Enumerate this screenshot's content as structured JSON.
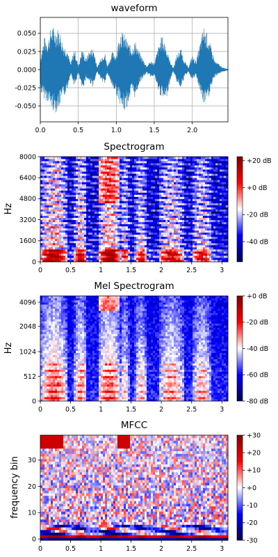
{
  "chart_data": [
    {
      "type": "line",
      "title": "waveform",
      "xlabel": "",
      "ylabel": "",
      "xlim": [
        0,
        2.47
      ],
      "ylim": [
        -0.072,
        0.072
      ],
      "xticks": [
        "0.0",
        "0.5",
        "1.0",
        "1.5",
        "2.0"
      ],
      "xtick_values": [
        0,
        0.5,
        1.0,
        1.5,
        2.0
      ],
      "yticks": [
        "0.050",
        "0.025",
        "0.000",
        "-0.025",
        "-0.050"
      ],
      "ytick_values": [
        0.05,
        0.025,
        0,
        -0.025,
        -0.05
      ],
      "grid": true,
      "color": "#1f77b4",
      "envelope": [
        {
          "x": 0.0,
          "max": 0.015,
          "min": -0.03
        },
        {
          "x": 0.05,
          "max": 0.045,
          "min": -0.04
        },
        {
          "x": 0.1,
          "max": 0.04,
          "min": -0.045
        },
        {
          "x": 0.15,
          "max": 0.062,
          "min": -0.055
        },
        {
          "x": 0.2,
          "max": 0.055,
          "min": -0.06
        },
        {
          "x": 0.25,
          "max": 0.058,
          "min": -0.052
        },
        {
          "x": 0.3,
          "max": 0.035,
          "min": -0.04
        },
        {
          "x": 0.35,
          "max": 0.03,
          "min": -0.03
        },
        {
          "x": 0.4,
          "max": 0.008,
          "min": -0.005
        },
        {
          "x": 0.45,
          "max": 0.03,
          "min": -0.025
        },
        {
          "x": 0.5,
          "max": 0.005,
          "min": -0.005
        },
        {
          "x": 0.55,
          "max": 0.03,
          "min": -0.03
        },
        {
          "x": 0.6,
          "max": 0.015,
          "min": -0.012
        },
        {
          "x": 0.65,
          "max": 0.028,
          "min": -0.018
        },
        {
          "x": 0.7,
          "max": 0.03,
          "min": -0.025
        },
        {
          "x": 0.75,
          "max": 0.003,
          "min": -0.003
        },
        {
          "x": 0.8,
          "max": 0.018,
          "min": -0.015
        },
        {
          "x": 0.85,
          "max": 0.025,
          "min": -0.02
        },
        {
          "x": 0.88,
          "max": 0.005,
          "min": -0.005
        },
        {
          "x": 0.95,
          "max": 0.025,
          "min": -0.025
        },
        {
          "x": 1.0,
          "max": 0.02,
          "min": -0.035
        },
        {
          "x": 1.05,
          "max": 0.055,
          "min": -0.048
        },
        {
          "x": 1.1,
          "max": 0.05,
          "min": -0.06
        },
        {
          "x": 1.15,
          "max": 0.04,
          "min": -0.05
        },
        {
          "x": 1.2,
          "max": 0.03,
          "min": -0.03
        },
        {
          "x": 1.25,
          "max": 0.04,
          "min": -0.04
        },
        {
          "x": 1.3,
          "max": 0.025,
          "min": -0.02
        },
        {
          "x": 1.35,
          "max": 0.015,
          "min": -0.012
        },
        {
          "x": 1.4,
          "max": 0.005,
          "min": -0.005
        },
        {
          "x": 1.45,
          "max": 0.012,
          "min": -0.01
        },
        {
          "x": 1.5,
          "max": 0.01,
          "min": -0.008
        },
        {
          "x": 1.55,
          "max": 0.03,
          "min": -0.03
        },
        {
          "x": 1.6,
          "max": 0.048,
          "min": -0.04
        },
        {
          "x": 1.65,
          "max": 0.035,
          "min": -0.045
        },
        {
          "x": 1.7,
          "max": 0.015,
          "min": -0.02
        },
        {
          "x": 1.75,
          "max": 0.002,
          "min": -0.002
        },
        {
          "x": 1.8,
          "max": 0.022,
          "min": -0.018
        },
        {
          "x": 1.85,
          "max": 0.03,
          "min": -0.025
        },
        {
          "x": 1.9,
          "max": 0.012,
          "min": -0.01
        },
        {
          "x": 1.95,
          "max": 0.003,
          "min": -0.003
        },
        {
          "x": 2.0,
          "max": 0.02,
          "min": -0.015
        },
        {
          "x": 2.05,
          "max": 0.012,
          "min": -0.008
        },
        {
          "x": 2.1,
          "max": 0.035,
          "min": -0.03
        },
        {
          "x": 2.15,
          "max": 0.06,
          "min": -0.05
        },
        {
          "x": 2.2,
          "max": 0.05,
          "min": -0.045
        },
        {
          "x": 2.25,
          "max": 0.03,
          "min": -0.025
        },
        {
          "x": 2.3,
          "max": 0.012,
          "min": -0.01
        },
        {
          "x": 2.35,
          "max": 0.008,
          "min": -0.006
        },
        {
          "x": 2.4,
          "max": 0.003,
          "min": -0.003
        },
        {
          "x": 2.47,
          "max": 0.001,
          "min": -0.001
        }
      ]
    },
    {
      "type": "heatmap",
      "title": "Spectrogram",
      "xlabel": "",
      "ylabel": "Hz",
      "xlim": [
        0,
        3.1
      ],
      "ylim": [
        0,
        8000
      ],
      "xticks": [
        "0",
        "0.5",
        "1",
        "1.5",
        "2",
        "2.5",
        "3"
      ],
      "xtick_values": [
        0,
        0.5,
        1,
        1.5,
        2,
        2.5,
        3
      ],
      "yticks": [
        "0",
        "1600",
        "3200",
        "4800",
        "6400",
        "8000"
      ],
      "ytick_values": [
        0,
        1600,
        3200,
        4800,
        6400,
        8000
      ],
      "colorbar_ticks": [
        "+20 dB",
        "+0 dB",
        "-20 dB",
        "-40 dB"
      ],
      "colorbar_values": [
        20,
        0,
        -20,
        -40
      ],
      "colorbar_range": [
        -55,
        23
      ],
      "colormap": "seismic"
    },
    {
      "type": "heatmap",
      "title": "Mel Spectrogram",
      "xlabel": "",
      "ylabel": "Hz",
      "xlim": [
        0,
        3.1
      ],
      "xticks": [
        "0",
        "0.5",
        "1",
        "1.5",
        "2",
        "2.5",
        "3"
      ],
      "xtick_values": [
        0,
        0.5,
        1,
        1.5,
        2,
        2.5,
        3
      ],
      "yticks": [
        "0",
        "512",
        "1024",
        "2048",
        "4096"
      ],
      "colorbar_ticks": [
        "+0 dB",
        "-20 dB",
        "-40 dB",
        "-60 dB",
        "-80 dB"
      ],
      "colorbar_values": [
        0,
        -20,
        -40,
        -60,
        -80
      ],
      "colorbar_range": [
        -80,
        0
      ],
      "colormap": "seismic"
    },
    {
      "type": "heatmap",
      "title": "MFCC",
      "xlabel": "",
      "ylabel": "frequency bin",
      "xlim": [
        0,
        3.1
      ],
      "ylim": [
        -0.5,
        39.5
      ],
      "xticks": [
        "0",
        "0.5",
        "1",
        "1.5",
        "2",
        "2.5",
        "3"
      ],
      "xtick_values": [
        0,
        0.5,
        1,
        1.5,
        2,
        2.5,
        3
      ],
      "yticks": [
        "0",
        "10",
        "20",
        "30"
      ],
      "ytick_values": [
        0,
        10,
        20,
        30
      ],
      "colorbar_ticks": [
        "+30",
        "+20",
        "+10",
        "+0",
        "-10",
        "-20",
        "-30"
      ],
      "colorbar_values": [
        30,
        20,
        10,
        0,
        -10,
        -20,
        -30
      ],
      "colorbar_range": [
        -30,
        30
      ],
      "colormap": "seismic"
    }
  ]
}
